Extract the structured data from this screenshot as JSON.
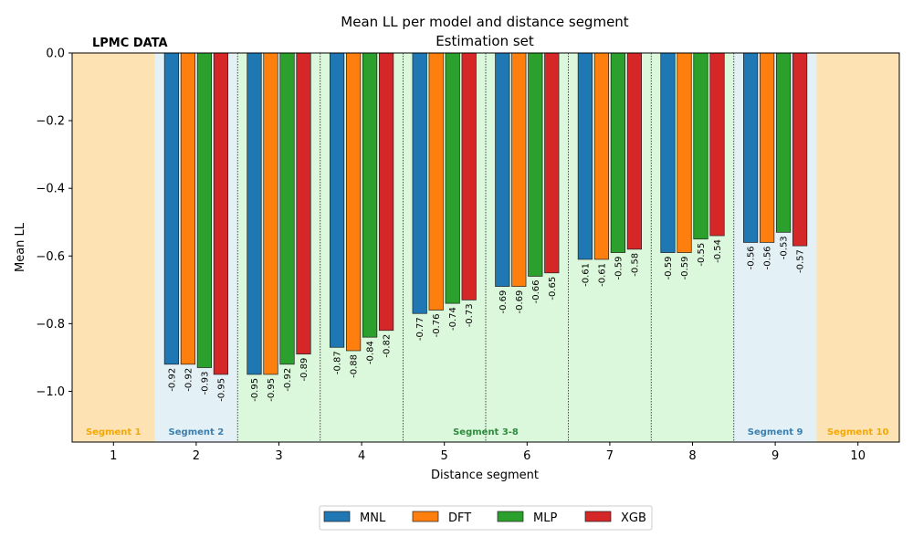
{
  "chart_data": {
    "type": "bar",
    "title": "Mean LL per model and distance segment",
    "subtitle": "Estimation set",
    "xlabel": "Distance segment",
    "ylabel": "Mean LL",
    "ylim": [
      -1.15,
      0
    ],
    "yticks": [
      0.0,
      -0.2,
      -0.4,
      -0.6,
      -0.8,
      -1.0
    ],
    "ytick_labels": [
      "0.0",
      "−0.2",
      "−0.4",
      "−0.6",
      "−0.8",
      "−1.0"
    ],
    "categories": [
      "1",
      "2",
      "3",
      "4",
      "5",
      "6",
      "7",
      "8",
      "9",
      "10"
    ],
    "annotation": "LPMC DATA",
    "series": [
      {
        "name": "MNL",
        "color": "#1f77b4",
        "values": [
          null,
          -0.92,
          -0.95,
          -0.87,
          -0.77,
          -0.69,
          -0.61,
          -0.59,
          -0.56,
          null
        ],
        "labels": [
          "",
          "-0.92",
          "-0.95",
          "-0.87",
          "-0.77",
          "-0.69",
          "-0.61",
          "-0.59",
          "-0.56",
          ""
        ]
      },
      {
        "name": "DFT",
        "color": "#ff7f0e",
        "values": [
          null,
          -0.92,
          -0.95,
          -0.88,
          -0.76,
          -0.69,
          -0.61,
          -0.59,
          -0.56,
          null
        ],
        "labels": [
          "",
          "-0.92",
          "-0.95",
          "-0.88",
          "-0.76",
          "-0.69",
          "-0.61",
          "-0.59",
          "-0.56",
          ""
        ]
      },
      {
        "name": "MLP",
        "color": "#2ca02c",
        "values": [
          null,
          -0.93,
          -0.92,
          -0.84,
          -0.74,
          -0.66,
          -0.59,
          -0.55,
          -0.53,
          null
        ],
        "labels": [
          "",
          "-0.93",
          "-0.92",
          "-0.84",
          "-0.74",
          "-0.66",
          "-0.59",
          "-0.55",
          "-0.53",
          ""
        ]
      },
      {
        "name": "XGB",
        "color": "#d62728",
        "values": [
          null,
          -0.95,
          -0.89,
          -0.82,
          -0.73,
          -0.65,
          -0.58,
          -0.54,
          -0.57,
          null
        ],
        "labels": [
          "",
          "-0.95",
          "-0.89",
          "-0.82",
          "-0.73",
          "-0.65",
          "-0.58",
          "-0.54",
          "-0.57",
          ""
        ]
      }
    ],
    "regions": [
      {
        "label": "Segment 1",
        "from": 1,
        "to": 1,
        "fill": "#fde2b4",
        "text_color": "#f5a800"
      },
      {
        "label": "Segment 2",
        "from": 2,
        "to": 2,
        "fill": "#e3f1f7",
        "text_color": "#3c7fae"
      },
      {
        "label": "Segment 3-8",
        "from": 3,
        "to": 8,
        "fill": "#dcf8dc",
        "text_color": "#2e8b3e"
      },
      {
        "label": "Segment 9",
        "from": 9,
        "to": 9,
        "fill": "#e3f1f7",
        "text_color": "#3c7fae"
      },
      {
        "label": "Segment 10",
        "from": 10,
        "to": 10,
        "fill": "#fde2b4",
        "text_color": "#f5a800"
      }
    ]
  }
}
